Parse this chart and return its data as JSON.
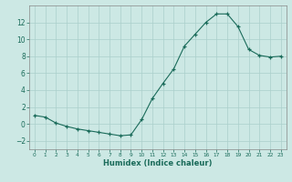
{
  "x_values": [
    0,
    1,
    2,
    3,
    4,
    5,
    6,
    7,
    8,
    9,
    10,
    11,
    12,
    13,
    14,
    15,
    16,
    17,
    18,
    19,
    20,
    21,
    22,
    23
  ],
  "y_values": [
    1.0,
    0.8,
    0.1,
    -0.3,
    -0.6,
    -0.8,
    -1.0,
    -1.2,
    -1.4,
    -1.3,
    0.5,
    3.0,
    4.8,
    6.5,
    9.2,
    10.6,
    12.0,
    13.0,
    13.0,
    11.5,
    8.8,
    8.1,
    7.9,
    8.0
  ],
  "xlabel": "Humidex (Indice chaleur)",
  "xlim": [
    -0.5,
    23.5
  ],
  "ylim": [
    -3,
    14
  ],
  "yticks": [
    -2,
    0,
    2,
    4,
    6,
    8,
    10,
    12
  ],
  "xticks": [
    0,
    1,
    2,
    3,
    4,
    5,
    6,
    7,
    8,
    9,
    10,
    11,
    12,
    13,
    14,
    15,
    16,
    17,
    18,
    19,
    20,
    21,
    22,
    23
  ],
  "line_color": "#1a6b5a",
  "bg_color": "#cce8e4",
  "grid_color": "#aacfcb",
  "tick_color": "#1a6b5a",
  "xlabel_color": "#1a6b5a"
}
